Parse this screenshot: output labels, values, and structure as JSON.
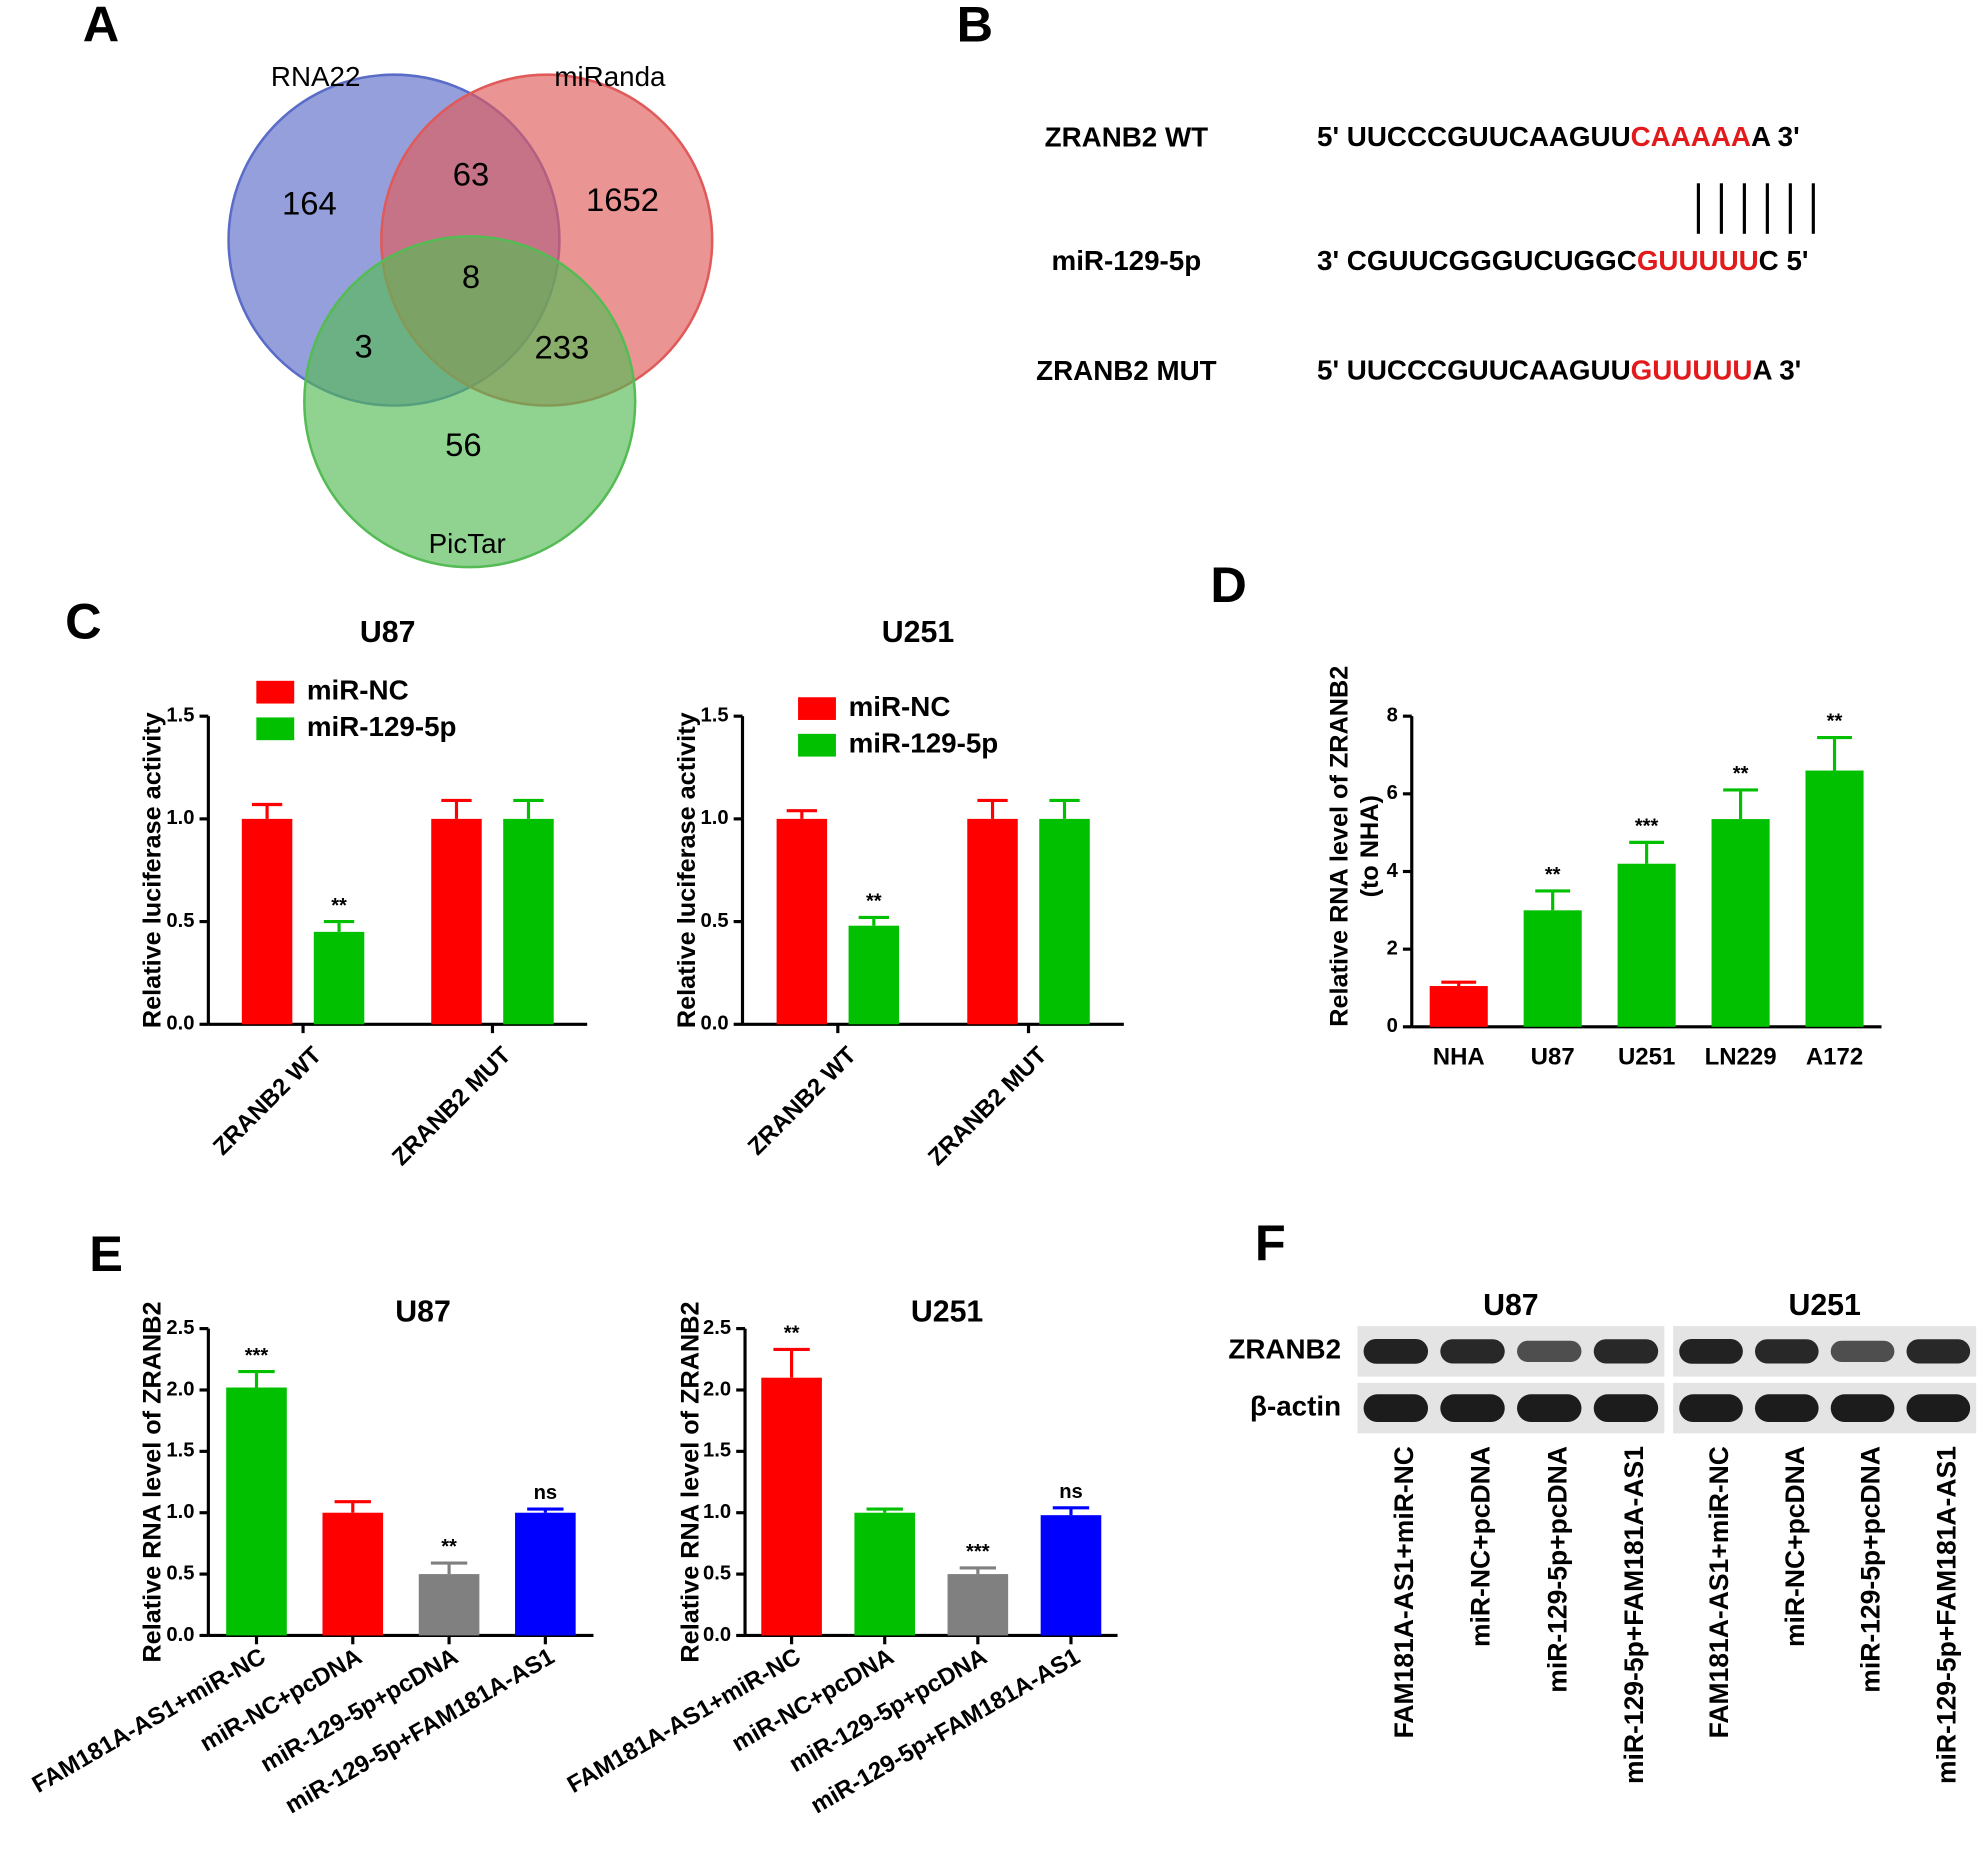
{
  "panel_labels": [
    "A",
    "B",
    "C",
    "D",
    "E",
    "F"
  ],
  "venn": {
    "sets": [
      {
        "name": "RNA22",
        "color": "#5a6cc8"
      },
      {
        "name": "miRanda",
        "color": "#e05a5a"
      },
      {
        "name": "PicTar",
        "color": "#55bb55"
      }
    ],
    "regions": [
      164,
      1652,
      56,
      63,
      3,
      233,
      8
    ]
  },
  "sequences": [
    {
      "name": "ZRANB2 WT",
      "prefix": "5' UUCCCGUUCAAGUU",
      "highlight": "CAAAAA",
      "suffix": "A 3'"
    },
    {
      "name": "miR-129-5p",
      "prefix": "3' CGUUCGGGUCUGGC",
      "highlight": "GUUUUU",
      "suffix": "C 5'"
    },
    {
      "name": "ZRANB2 MUT",
      "prefix": "5' UUCCCGUUCAAGUU",
      "highlight": "GUUUUU",
      "suffix": "A 3'"
    }
  ],
  "chart_data": [
    {
      "type": "bar",
      "title": "U87",
      "ylabel": "Relative luciferase activity",
      "categories": [
        "ZRANB2 WT",
        "ZRANB2 MUT"
      ],
      "series": [
        {
          "name": "miR-NC",
          "color": "#ff0000",
          "values": [
            1.0,
            1.0
          ],
          "errors": [
            0.07,
            0.09
          ],
          "annotations": [
            null,
            null
          ]
        },
        {
          "name": "miR-129-5p",
          "color": "#00c000",
          "values": [
            0.45,
            1.0
          ],
          "errors": [
            0.05,
            0.09
          ],
          "annotations": [
            "**",
            null
          ]
        }
      ],
      "ylim": [
        0,
        1.5
      ],
      "yticks": [
        {
          "value": 0,
          "label": "0.0"
        },
        0.5,
        {
          "value": 1,
          "label": "1.0"
        },
        1.5
      ]
    },
    {
      "type": "bar",
      "title": "U251",
      "ylabel": "Relative luciferase activity",
      "categories": [
        "ZRANB2 WT",
        "ZRANB2  MUT"
      ],
      "series": [
        {
          "name": "miR-NC",
          "color": "#ff0000",
          "values": [
            1.0,
            1.0
          ],
          "errors": [
            0.04,
            0.09
          ],
          "annotations": [
            null,
            null
          ]
        },
        {
          "name": "miR-129-5p",
          "color": "#00c000",
          "values": [
            0.48,
            1.0
          ],
          "errors": [
            0.04,
            0.09
          ],
          "annotations": [
            "**",
            null
          ]
        }
      ],
      "ylim": [
        0,
        1.5
      ],
      "yticks": [
        {
          "value": 0,
          "label": "0.0"
        },
        0.5,
        {
          "value": 1,
          "label": "1.0"
        },
        1.5
      ]
    },
    {
      "type": "bar",
      "ylabel": [
        "Relative RNA level of ZRANB2",
        "(to NHA)"
      ],
      "categories": [
        "NHA",
        "U87",
        "U251",
        "LN229",
        "A172"
      ],
      "values": [
        1.05,
        3.0,
        4.2,
        5.35,
        6.6
      ],
      "errors": [
        0.1,
        0.5,
        0.55,
        0.75,
        0.85
      ],
      "colors": [
        "#ff0000",
        "#00c000",
        "#00c000",
        "#00c000",
        "#00c000"
      ],
      "annotations": [
        null,
        "**",
        "***",
        "**",
        "**"
      ],
      "ylim": [
        0,
        8
      ],
      "yticks": [
        0,
        2,
        4,
        6,
        8
      ]
    },
    {
      "type": "bar",
      "title": "U87",
      "ylabel": "Relative RNA level of ZRANB2",
      "categories": [
        "FAM181A-AS1+miR-NC",
        "miR-NC+pcDNA",
        "miR-129-5p+pcDNA",
        "miR-129-5p+FAM181A-AS1"
      ],
      "values": [
        2.02,
        1.0,
        0.5,
        1.0
      ],
      "errors": [
        0.13,
        0.09,
        0.09,
        0.03
      ],
      "colors": [
        "#00c000",
        "#ff0000",
        "#808080",
        "#0000ff"
      ],
      "annotations": [
        "***",
        null,
        "**",
        "ns"
      ],
      "ylim": [
        0,
        2.5
      ],
      "yticks": [
        {
          "value": 0,
          "label": "0.0"
        },
        0.5,
        {
          "value": 1,
          "label": "1.0"
        },
        1.5,
        {
          "value": 2,
          "label": "2.0"
        },
        2.5
      ]
    },
    {
      "type": "bar",
      "title": "U251",
      "ylabel": "Relative RNA level of ZRANB2",
      "categories": [
        "FAM181A-AS1+miR-NC",
        "miR-NC+pcDNA",
        "miR-129-5p+pcDNA",
        "miR-129-5p+FAM181A-AS1"
      ],
      "values": [
        2.1,
        1.0,
        0.5,
        0.98
      ],
      "errors": [
        0.23,
        0.03,
        0.05,
        0.06
      ],
      "colors": [
        "#ff0000",
        "#00c000",
        "#808080",
        "#0000ff"
      ],
      "annotations": [
        "**",
        null,
        "***",
        "ns"
      ],
      "ylim": [
        0,
        2.5
      ],
      "yticks": [
        {
          "value": 0,
          "label": "0.0"
        },
        0.5,
        {
          "value": 1,
          "label": "1.0"
        },
        1.5,
        {
          "value": 2,
          "label": "2.0"
        },
        2.5
      ]
    }
  ],
  "blot": {
    "groups": [
      "U87",
      "U251"
    ],
    "rows": [
      "ZRANB2",
      "β-actin"
    ],
    "lanes": [
      "FAM181A-AS1+miR-NC",
      "miR-NC+pcDNA",
      "miR-129-5p+pcDNA",
      "miR-129-5p+FAM181A-AS1"
    ]
  }
}
